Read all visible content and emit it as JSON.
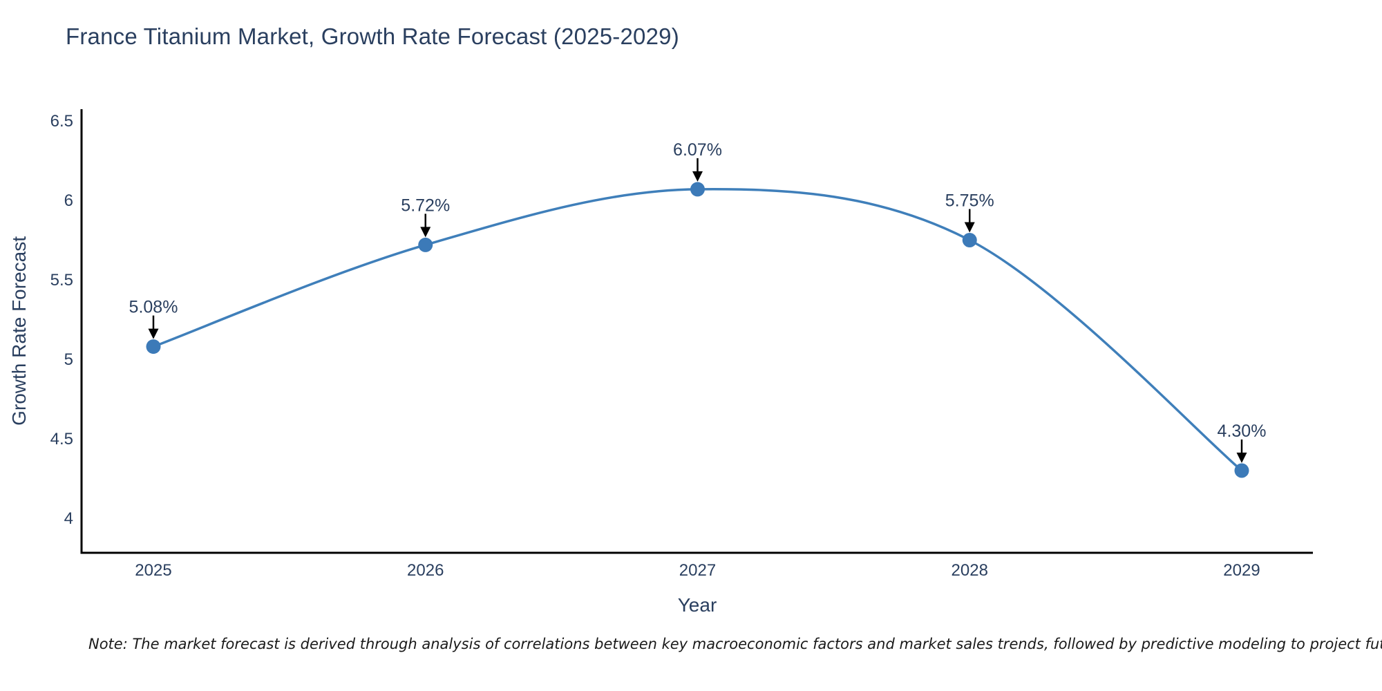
{
  "title": "France Titanium Market, Growth Rate Forecast (2025-2029)",
  "note": "Note: The market forecast is derived through analysis of correlations between key macroeconomic factors and market sales trends, followed by predictive modeling to project future sales",
  "chart_data": {
    "type": "line",
    "title": "France Titanium Market, Growth Rate Forecast (2025-2029)",
    "xlabel": "Year",
    "ylabel": "Growth Rate Forecast",
    "x": [
      2025,
      2026,
      2027,
      2028,
      2029
    ],
    "y": [
      5.08,
      5.72,
      6.07,
      5.75,
      4.3
    ],
    "point_labels": [
      "5.08%",
      "5.72%",
      "6.07%",
      "5.75%",
      "4.30%"
    ],
    "y_ticks": [
      6.5,
      6,
      5.5,
      5,
      4.5,
      4
    ],
    "ylim": [
      3.78,
      6.57
    ],
    "line_shape": "spline",
    "grid": false,
    "legend": "none",
    "colors": {
      "line": "#3f7fba",
      "marker": "#3c7ab8",
      "axis": "#000000",
      "text": "#2a3f5f",
      "annotation_arrow": "#000000",
      "background": "#ffffff"
    }
  }
}
